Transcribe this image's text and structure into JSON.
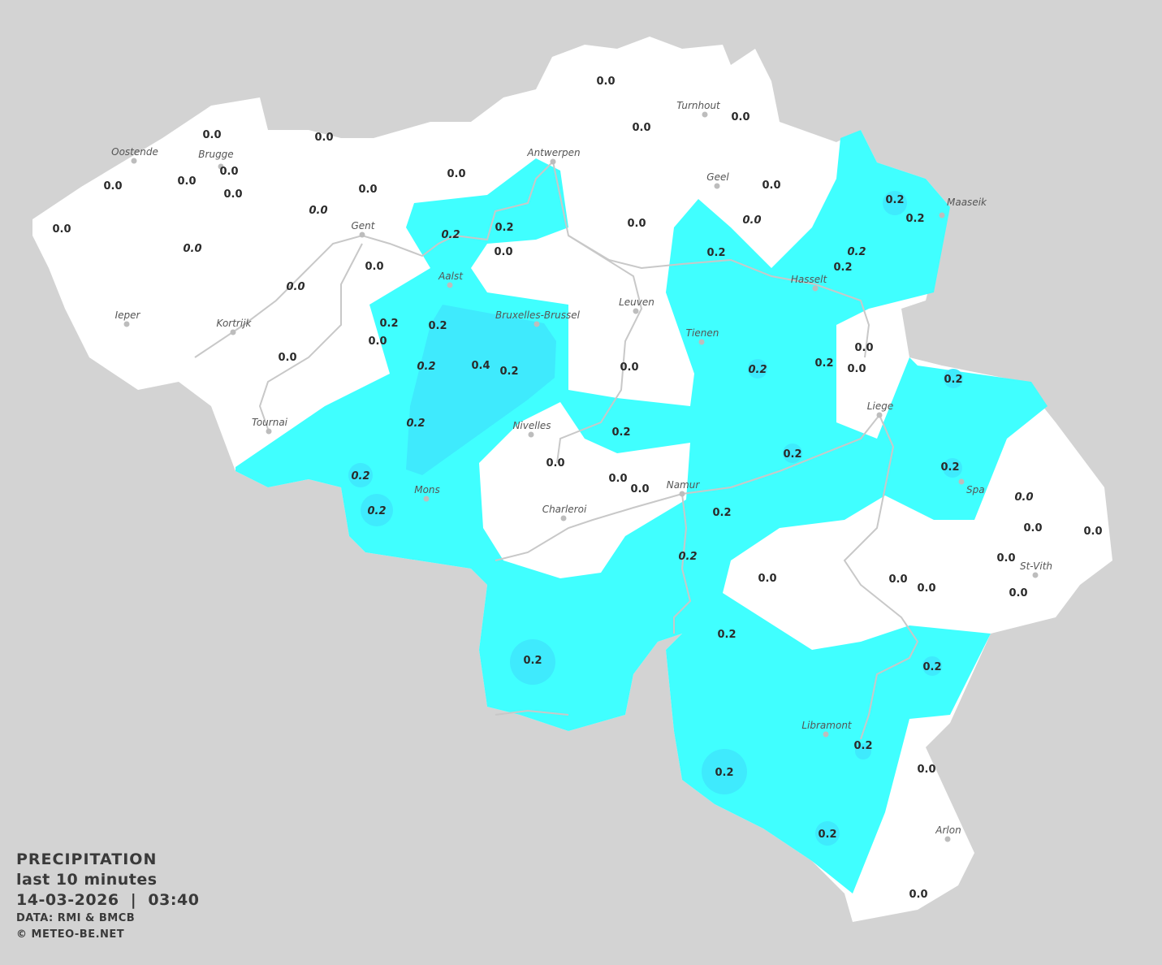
{
  "map": {
    "colors": {
      "background": "#d3d3d3",
      "land": "#ffffff",
      "rain_0_2": "#40ffff",
      "rain_0_4": "#3feafd",
      "border_river": "#c8c8c8",
      "dot": "#bdbdbd"
    },
    "cities": [
      "Oostende",
      "Brugge",
      "Antwerpen",
      "Turnhout",
      "Geel",
      "Maaseik",
      "Gent",
      "Hasselt",
      "Aalst",
      "Leuven",
      "Bruxelles-Brussel",
      "Tienen",
      "Ieper",
      "Kortrijk",
      "Liege",
      "Tournai",
      "Nivelles",
      "Spa",
      "Mons",
      "Namur",
      "Charleroi",
      "St-Vith",
      "Libramont",
      "Arlon"
    ],
    "values": [
      {
        "text": "0.0"
      },
      {
        "text": "0.0"
      },
      {
        "text": "0.0"
      },
      {
        "text": "0.0"
      },
      {
        "text": "0.0"
      },
      {
        "text": "0.0"
      },
      {
        "text": "0.0"
      },
      {
        "text": "0.0"
      },
      {
        "text": "0.0"
      },
      {
        "text": "0.0"
      },
      {
        "text": "0.0"
      },
      {
        "text": "0.0"
      },
      {
        "text": "0.0",
        "italic": true
      },
      {
        "text": "0.0"
      },
      {
        "text": "0.0",
        "italic": true
      },
      {
        "text": "0.0",
        "italic": true
      },
      {
        "text": "0.0"
      },
      {
        "text": "0.2"
      },
      {
        "text": "0.2"
      },
      {
        "text": "0.2",
        "italic": true
      },
      {
        "text": "0.2"
      },
      {
        "text": "0.0"
      },
      {
        "text": "0.2"
      },
      {
        "text": "0.2",
        "italic": true
      },
      {
        "text": "0.2"
      },
      {
        "text": "0.0"
      },
      {
        "text": "0.0",
        "italic": true
      },
      {
        "text": "0.2"
      },
      {
        "text": "0.2"
      },
      {
        "text": "0.0"
      },
      {
        "text": "0.0"
      },
      {
        "text": "0.2",
        "italic": true
      },
      {
        "text": "0.4"
      },
      {
        "text": "0.2"
      },
      {
        "text": "0.2",
        "italic": true
      },
      {
        "text": "0.2"
      },
      {
        "text": "0.0"
      },
      {
        "text": "0.0"
      },
      {
        "text": "0.0"
      },
      {
        "text": "0.2"
      },
      {
        "text": "0.2",
        "italic": true
      },
      {
        "text": "0.2"
      },
      {
        "text": "0.2"
      },
      {
        "text": "0.0"
      },
      {
        "text": "0.0"
      },
      {
        "text": "0.0"
      },
      {
        "text": "0.2",
        "italic": true
      },
      {
        "text": "0.2"
      },
      {
        "text": "0.0",
        "italic": true
      },
      {
        "text": "0.2",
        "italic": true
      },
      {
        "text": "0.2"
      },
      {
        "text": "0.0"
      },
      {
        "text": "0.0"
      },
      {
        "text": "0.2",
        "italic": true
      },
      {
        "text": "0.0"
      },
      {
        "text": "0.0"
      },
      {
        "text": "0.0"
      },
      {
        "text": "0.0"
      },
      {
        "text": "0.0"
      },
      {
        "text": "0.2"
      },
      {
        "text": "0.2"
      },
      {
        "text": "0.2"
      },
      {
        "text": "0.2"
      },
      {
        "text": "0.2"
      },
      {
        "text": "0.0"
      },
      {
        "text": "0.2"
      },
      {
        "text": "0.0"
      }
    ]
  },
  "legend": {
    "title": "PRECIPITATION",
    "period": "last 10 minutes",
    "datetime": "14-03-2026  |  03:40",
    "source": "DATA: RMI & BMCB",
    "copyright": "© METEO-BE.NET"
  }
}
